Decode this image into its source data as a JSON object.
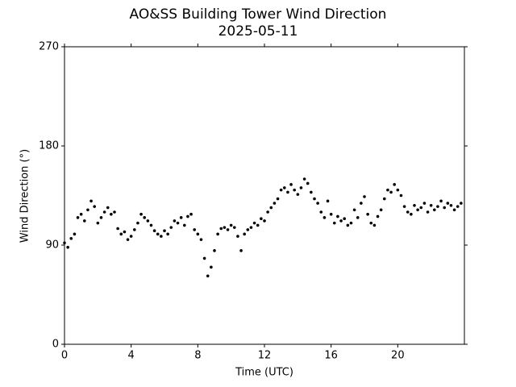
{
  "chart_data": {
    "type": "scatter",
    "title": "AO&SS Building Tower Wind Direction",
    "subtitle": "2025-05-11",
    "x_label": "Time (UTC)",
    "y_label": "Wind Direction (°)",
    "color": "#000000",
    "xlim": [
      0,
      24
    ],
    "xticks": [
      0,
      4,
      8,
      12,
      16,
      20
    ],
    "ylim": [
      0,
      270
    ],
    "yticks": [
      0,
      90,
      180,
      270
    ],
    "x": [
      0,
      0.2,
      0.4,
      0.6,
      0.8,
      1,
      1.2,
      1.4,
      1.6,
      1.8,
      2,
      2.2,
      2.4,
      2.6,
      2.8,
      3,
      3.2,
      3.4,
      3.6,
      3.8,
      4,
      4.2,
      4.4,
      4.6,
      4.8,
      5,
      5.2,
      5.4,
      5.6,
      5.8,
      6,
      6.2,
      6.4,
      6.6,
      6.8,
      7,
      7.2,
      7.4,
      7.6,
      7.8,
      8,
      8.2,
      8.4,
      8.6,
      8.8,
      9,
      9.2,
      9.4,
      9.6,
      9.8,
      10,
      10.2,
      10.4,
      10.6,
      10.8,
      11,
      11.2,
      11.4,
      11.6,
      11.8,
      12,
      12.2,
      12.4,
      12.6,
      12.8,
      13,
      13.2,
      13.4,
      13.6,
      13.8,
      14,
      14.2,
      14.4,
      14.6,
      14.8,
      15,
      15.2,
      15.4,
      15.6,
      15.8,
      16,
      16.2,
      16.4,
      16.6,
      16.8,
      17,
      17.2,
      17.4,
      17.6,
      17.8,
      18,
      18.2,
      18.4,
      18.6,
      18.8,
      19,
      19.2,
      19.4,
      19.6,
      19.8,
      20,
      20.2,
      20.4,
      20.6,
      20.8,
      21,
      21.2,
      21.4,
      21.6,
      21.8,
      22,
      22.2,
      22.4,
      22.6,
      22.8,
      23,
      23.2,
      23.4,
      23.6,
      23.8
    ],
    "values": [
      92,
      88,
      96,
      100,
      115,
      118,
      112,
      122,
      130,
      125,
      110,
      115,
      120,
      124,
      118,
      120,
      105,
      100,
      102,
      95,
      98,
      104,
      110,
      118,
      115,
      112,
      108,
      103,
      100,
      98,
      103,
      100,
      106,
      112,
      110,
      115,
      108,
      116,
      118,
      104,
      100,
      95,
      78,
      62,
      70,
      85,
      100,
      105,
      106,
      104,
      108,
      106,
      98,
      85,
      100,
      104,
      106,
      110,
      108,
      114,
      112,
      120,
      124,
      128,
      132,
      140,
      142,
      138,
      145,
      140,
      136,
      142,
      150,
      146,
      138,
      132,
      128,
      120,
      115,
      130,
      118,
      110,
      116,
      112,
      114,
      108,
      110,
      122,
      115,
      128,
      134,
      118,
      110,
      108,
      116,
      122,
      132,
      140,
      138,
      145,
      140,
      135,
      125,
      120,
      118,
      126,
      122,
      124,
      128,
      120,
      126,
      122,
      125,
      130,
      124,
      128,
      126,
      122,
      125,
      128
    ]
  }
}
